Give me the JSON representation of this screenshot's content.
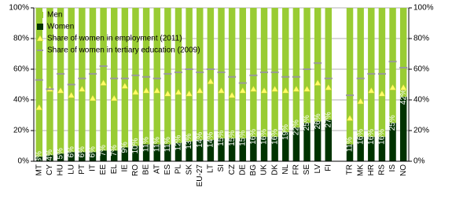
{
  "chart_data": {
    "type": "bar",
    "stacked": true,
    "categories": [
      "MT",
      "CY",
      "HU",
      "LU",
      "PT",
      "IT",
      "EE",
      "EL",
      "IE",
      "RO",
      "BE",
      "AT",
      "ES",
      "PL",
      "SK",
      "EU-27",
      "LT",
      "SI",
      "CZ",
      "DE",
      "BG",
      "UK",
      "DK",
      "NL",
      "FR",
      "SE",
      "LV",
      "FI",
      null,
      "TR",
      "MK",
      "HR",
      "RS",
      "IS",
      "NO"
    ],
    "series": [
      {
        "name": "Men",
        "type": "bar",
        "color": "#99cc33",
        "values": [
          97,
          96,
          95,
          94,
          94,
          94,
          93,
          93,
          91,
          90,
          89,
          89,
          89,
          88,
          87,
          86,
          86,
          85,
          85,
          85,
          84,
          84,
          84,
          81,
          78,
          75,
          74,
          73,
          null,
          89,
          84,
          84,
          84,
          75,
          58
        ]
      },
      {
        "name": "Women",
        "type": "bar",
        "color": "#003300",
        "values": [
          3,
          4,
          5,
          6,
          6,
          6,
          7,
          7,
          9,
          10,
          11,
          11,
          11,
          12,
          13,
          14,
          14,
          15,
          15,
          15,
          16,
          16,
          16,
          19,
          22,
          25,
          26,
          27,
          null,
          11,
          16,
          16,
          16,
          25,
          42
        ],
        "value_labels": [
          "3%",
          "4%",
          "5%",
          "6%",
          "6%",
          "6%",
          "7%",
          "7%",
          "9%",
          "10%",
          "11%",
          "11%",
          "11%",
          "12%",
          "13%",
          "14%",
          "14%",
          "15%",
          "15%",
          "15%",
          "16%",
          "16%",
          "16%",
          "19%",
          "22%",
          "25%",
          "26%",
          "27%",
          null,
          "11%",
          "16%",
          "16%",
          "16%",
          "25%",
          "42%"
        ]
      },
      {
        "name": "Share of women in employment (2011)",
        "type": "marker",
        "marker": "triangle",
        "color": "#ffff66",
        "values": [
          35,
          47,
          46,
          43,
          47,
          41,
          51,
          41,
          49,
          45,
          46,
          46,
          44,
          45,
          44,
          46,
          52,
          46,
          43,
          46,
          47,
          46,
          47,
          46,
          47,
          47,
          51,
          48,
          null,
          28,
          39,
          46,
          44,
          48,
          48
        ]
      },
      {
        "name": "Share of women in tertiary education (2009)",
        "type": "marker",
        "marker": "dash",
        "color": "#999999",
        "values": [
          53,
          47,
          57,
          50,
          54,
          57,
          62,
          54,
          54,
          56,
          55,
          54,
          57,
          58,
          60,
          58,
          60,
          58,
          55,
          51,
          56,
          58,
          58,
          55,
          55,
          60,
          64,
          54,
          null,
          43,
          54,
          57,
          57,
          65,
          61
        ]
      }
    ],
    "ylim": [
      0,
      100
    ],
    "yticks": [
      {
        "value": 0,
        "label": "0%"
      },
      {
        "value": 20,
        "label": "20%"
      },
      {
        "value": 40,
        "label": "40%"
      },
      {
        "value": 60,
        "label": "60%"
      },
      {
        "value": 80,
        "label": "80%"
      },
      {
        "value": 100,
        "label": "100%"
      }
    ],
    "y2lim": [
      0,
      100
    ],
    "y2ticks": [
      {
        "value": 0,
        "label": "0%"
      },
      {
        "value": 20,
        "label": "20%"
      },
      {
        "value": 40,
        "label": "40%"
      },
      {
        "value": 60,
        "label": "60%"
      },
      {
        "value": 80,
        "label": "80%"
      },
      {
        "value": 100,
        "label": "100%"
      }
    ],
    "grid": true,
    "legend": "top-left"
  }
}
